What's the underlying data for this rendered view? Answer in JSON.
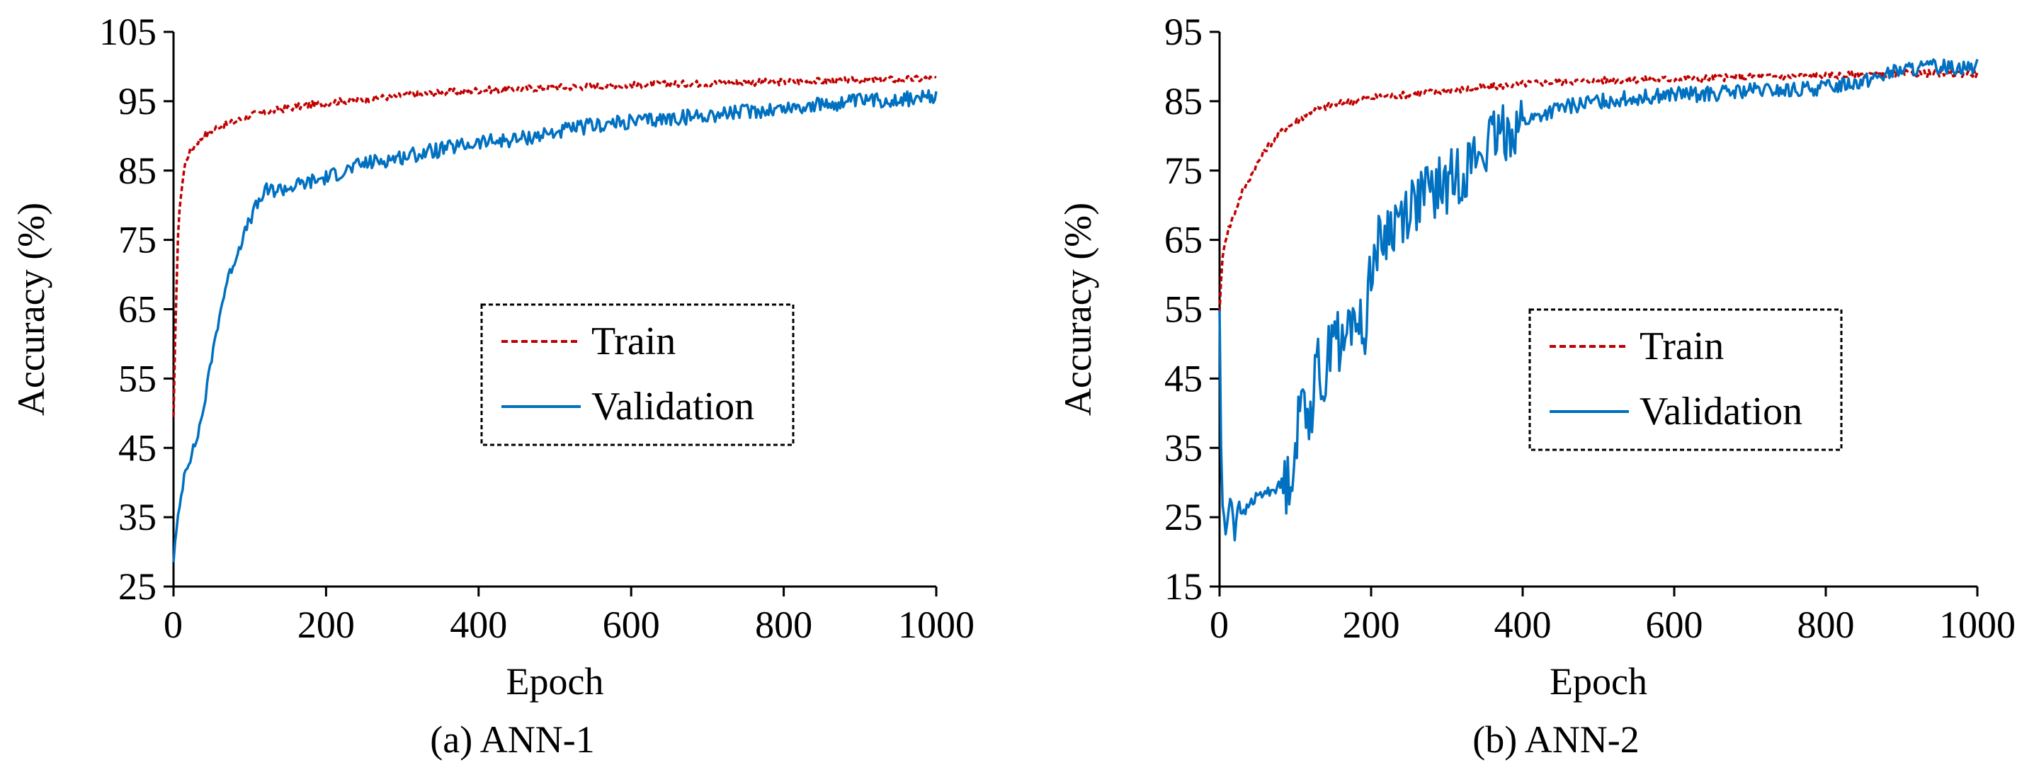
{
  "chart_data": [
    {
      "type": "line",
      "caption": "(a) ANN-1",
      "xlabel": "Epoch",
      "ylabel": "Accuracy (%)",
      "xlim": [
        0,
        1000
      ],
      "ylim": [
        25,
        105
      ],
      "xticks": [
        "0",
        "200",
        "400",
        "600",
        "800",
        "1000"
      ],
      "yticks": [
        "25",
        "35",
        "45",
        "55",
        "65",
        "75",
        "85",
        "95",
        "105"
      ],
      "legend_position": "center-right",
      "grid": false,
      "series": [
        {
          "name": "Train",
          "style": "dashed",
          "color": "#c00000",
          "x": [
            0,
            3,
            6,
            10,
            15,
            20,
            30,
            40,
            60,
            80,
            100,
            150,
            200,
            250,
            300,
            350,
            400,
            450,
            500,
            600,
            700,
            800,
            900,
            1000
          ],
          "y": [
            49,
            65,
            76,
            82,
            86,
            87.5,
            89,
            90,
            91.5,
            92,
            93,
            94,
            94.8,
            95.3,
            95.8,
            96.2,
            96.6,
            96.8,
            97,
            97.3,
            97.6,
            97.8,
            98,
            98.3
          ]
        },
        {
          "name": "Validation",
          "style": "solid",
          "color": "#0070c0",
          "x": [
            0,
            5,
            10,
            15,
            20,
            30,
            40,
            50,
            60,
            70,
            80,
            90,
            100,
            110,
            120,
            150,
            200,
            250,
            300,
            350,
            400,
            450,
            500,
            550,
            600,
            650,
            700,
            750,
            800,
            850,
            900,
            950,
            1000
          ],
          "y": [
            29,
            34,
            38,
            42,
            43,
            46,
            51,
            58,
            64,
            69,
            72,
            75,
            78,
            80,
            82,
            82.5,
            84,
            86,
            87,
            88,
            89,
            89.5,
            90.5,
            91.5,
            92,
            92.5,
            93,
            93.5,
            94,
            94.5,
            95,
            95.3,
            95.5
          ]
        }
      ]
    },
    {
      "type": "line",
      "caption": "(b) ANN-2",
      "xlabel": "Epoch",
      "ylabel": "Accuracy (%)",
      "xlim": [
        0,
        1000
      ],
      "ylim": [
        15,
        95
      ],
      "xticks": [
        "0",
        "200",
        "400",
        "600",
        "800",
        "1000"
      ],
      "yticks": [
        "15",
        "25",
        "35",
        "45",
        "55",
        "65",
        "75",
        "85",
        "95"
      ],
      "legend_position": "center-right",
      "grid": false,
      "series": [
        {
          "name": "Train",
          "style": "dashed",
          "color": "#c00000",
          "x": [
            0,
            5,
            10,
            20,
            30,
            40,
            50,
            60,
            80,
            100,
            120,
            150,
            200,
            250,
            300,
            350,
            400,
            450,
            500,
            600,
            700,
            800,
            900,
            1000
          ],
          "y": [
            55,
            64,
            66,
            69,
            72,
            74,
            76,
            78,
            80.5,
            82,
            83.5,
            84.5,
            85.5,
            86,
            86.5,
            87,
            87.5,
            87.8,
            88,
            88.2,
            88.5,
            88.7,
            89,
            89
          ]
        },
        {
          "name": "Validation",
          "style": "solid",
          "color": "#0070c0",
          "x": [
            0,
            2,
            4,
            6,
            8,
            10,
            15,
            20,
            25,
            30,
            40,
            50,
            60,
            70,
            80,
            90,
            100,
            110,
            120,
            130,
            140,
            150,
            160,
            170,
            180,
            190,
            200,
            220,
            250,
            280,
            300,
            320,
            350,
            380,
            400,
            450,
            500,
            550,
            600,
            650,
            700,
            750,
            800,
            850,
            900,
            950,
            1000
          ],
          "y": [
            55,
            35,
            27,
            25,
            22,
            24,
            29,
            22,
            28,
            25,
            27,
            28,
            28.5,
            29,
            29.5,
            30,
            35,
            43,
            40,
            47,
            44,
            55,
            48,
            52,
            55,
            50,
            62,
            66,
            70,
            72,
            73,
            75,
            78,
            81,
            82,
            84,
            85,
            85.5,
            86,
            86,
            86.5,
            86.5,
            87,
            88,
            89.5,
            90,
            90
          ]
        }
      ]
    }
  ]
}
